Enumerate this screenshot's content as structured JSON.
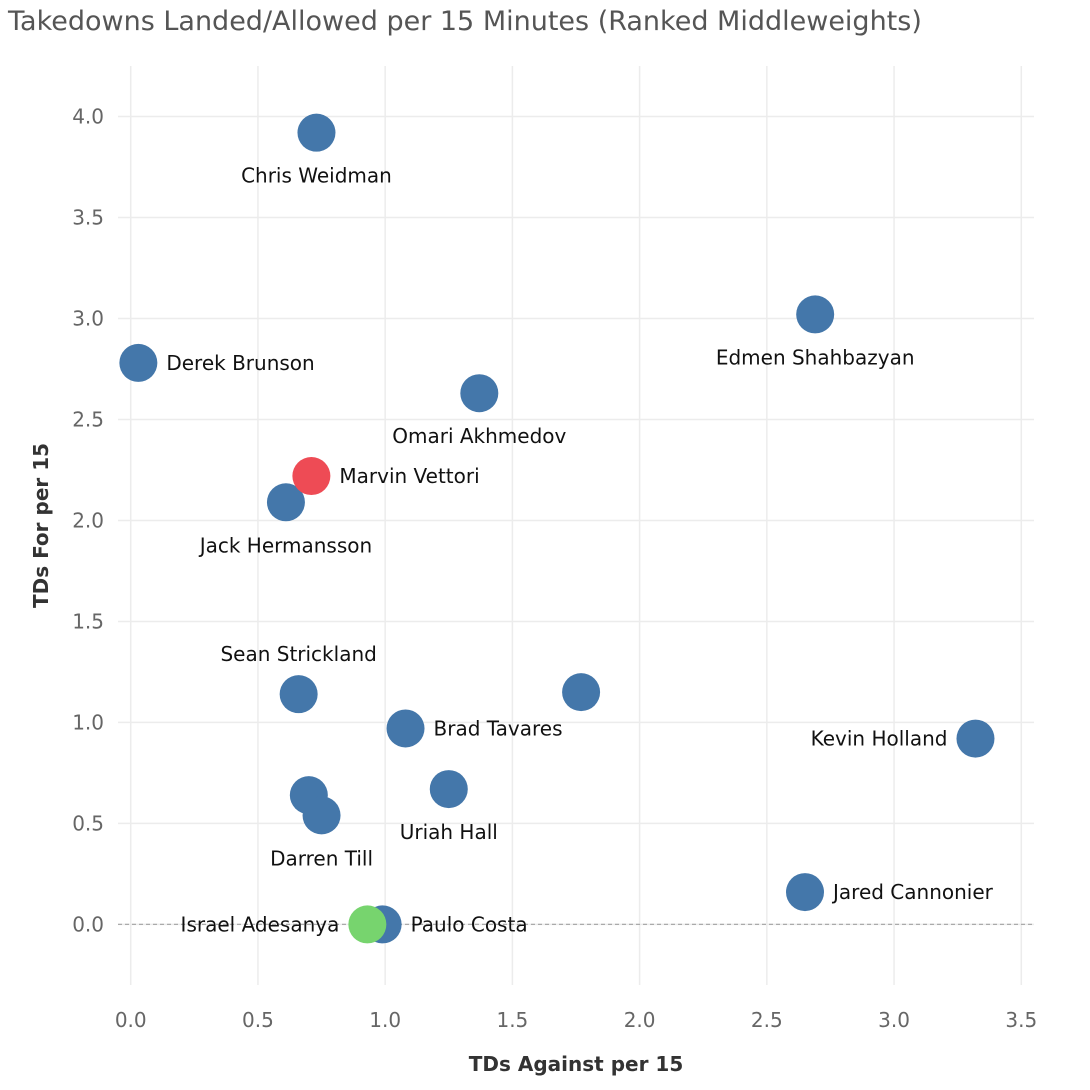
{
  "chart_data": {
    "type": "scatter",
    "title": "Takedowns Landed/Allowed per 15 Minutes (Ranked Middleweights)",
    "xlabel": "TDs Against per 15",
    "ylabel": "TDs For per 15",
    "xlim": [
      -0.05,
      3.55
    ],
    "ylim": [
      -0.3,
      4.25
    ],
    "x_ticks": [
      "0.0",
      "0.5",
      "1.0",
      "1.5",
      "2.0",
      "2.5",
      "3.0",
      "3.5"
    ],
    "y_ticks": [
      "0.0",
      "0.5",
      "1.0",
      "1.5",
      "2.0",
      "2.5",
      "3.0",
      "3.5",
      "4.0"
    ],
    "grid": true,
    "reference_line_y": 0,
    "colors": {
      "default": "#4477aa",
      "highlight": "#ee4b55",
      "champion": "#77d46e"
    },
    "points": [
      {
        "label": "Chris Weidman",
        "x": 0.73,
        "y": 3.92,
        "color": "default",
        "label_pos": "below"
      },
      {
        "label": "Edmen Shahbazyan",
        "x": 2.69,
        "y": 3.02,
        "color": "default",
        "label_pos": "below"
      },
      {
        "label": "Derek Brunson",
        "x": 0.03,
        "y": 2.78,
        "color": "default",
        "label_pos": "right"
      },
      {
        "label": "Omari Akhmedov",
        "x": 1.37,
        "y": 2.63,
        "color": "default",
        "label_pos": "below"
      },
      {
        "label": "Marvin Vettori",
        "x": 0.71,
        "y": 2.22,
        "color": "highlight",
        "label_pos": "right"
      },
      {
        "label": "Jack Hermansson",
        "x": 0.61,
        "y": 2.09,
        "color": "default",
        "label_pos": "below"
      },
      {
        "label": "Sean Strickland",
        "x": 0.66,
        "y": 1.14,
        "color": "default",
        "label_pos": "above"
      },
      {
        "label": "",
        "x": 1.77,
        "y": 1.15,
        "color": "default",
        "label_pos": "none"
      },
      {
        "label": "Brad Tavares",
        "x": 1.08,
        "y": 0.97,
        "color": "default",
        "label_pos": "right"
      },
      {
        "label": "Kevin Holland",
        "x": 3.32,
        "y": 0.92,
        "color": "default",
        "label_pos": "left"
      },
      {
        "label": "Uriah Hall",
        "x": 1.25,
        "y": 0.67,
        "color": "default",
        "label_pos": "below"
      },
      {
        "label": "",
        "x": 0.7,
        "y": 0.64,
        "color": "default",
        "label_pos": "none"
      },
      {
        "label": "Darren Till",
        "x": 0.75,
        "y": 0.54,
        "color": "default",
        "label_pos": "below"
      },
      {
        "label": "Jared Cannonier",
        "x": 2.65,
        "y": 0.16,
        "color": "default",
        "label_pos": "right"
      },
      {
        "label": "Paulo Costa",
        "x": 0.99,
        "y": 0.0,
        "color": "default",
        "label_pos": "right"
      },
      {
        "label": "Israel Adesanya",
        "x": 0.93,
        "y": 0.0,
        "color": "champion",
        "label_pos": "left"
      }
    ]
  }
}
